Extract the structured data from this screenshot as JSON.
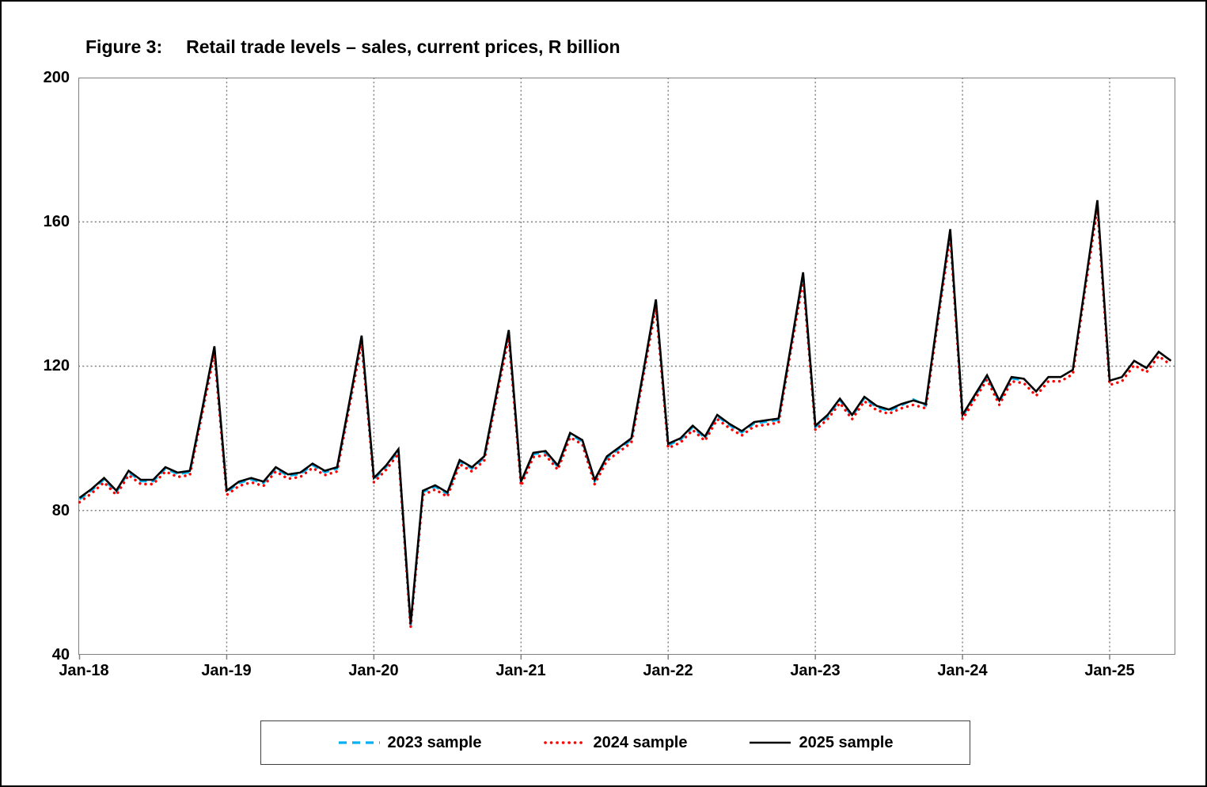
{
  "figure": {
    "title_prefix": "Figure 3:",
    "title_text": "Retail trade levels – sales, current prices, R billion"
  },
  "y_axis": {
    "ticks": [
      "200",
      "160",
      "120",
      "80",
      "40"
    ]
  },
  "x_axis": {
    "labels": [
      "Jan-18",
      "Jan-19",
      "Jan-20",
      "Jan-21",
      "Jan-22",
      "Jan-23",
      "Jan-24",
      "Jan-25"
    ]
  },
  "legend": {
    "items": [
      {
        "label": "2023 sample",
        "color": "#00B0F0",
        "style": "dashed"
      },
      {
        "label": "2024 sample",
        "color": "#FF0000",
        "style": "dotted"
      },
      {
        "label": "2025 sample",
        "color": "#000000",
        "style": "solid"
      }
    ]
  },
  "chart_data": {
    "type": "line",
    "title": "Figure 3: Retail trade levels – sales, current prices, R billion",
    "xlabel": "",
    "ylabel": "R billion",
    "ylim": [
      40,
      200
    ],
    "yticks": [
      40,
      80,
      120,
      160,
      200
    ],
    "grid_y": [
      80,
      120,
      160
    ],
    "grid_style": "dotted",
    "legend_position": "bottom",
    "x": [
      "Jan-18",
      "Feb-18",
      "Mar-18",
      "Apr-18",
      "May-18",
      "Jun-18",
      "Jul-18",
      "Aug-18",
      "Sep-18",
      "Oct-18",
      "Nov-18",
      "Dec-18",
      "Jan-19",
      "Feb-19",
      "Mar-19",
      "Apr-19",
      "May-19",
      "Jun-19",
      "Jul-19",
      "Aug-19",
      "Sep-19",
      "Oct-19",
      "Nov-19",
      "Dec-19",
      "Jan-20",
      "Feb-20",
      "Mar-20",
      "Apr-20",
      "May-20",
      "Jun-20",
      "Jul-20",
      "Aug-20",
      "Sep-20",
      "Oct-20",
      "Nov-20",
      "Dec-20",
      "Jan-21",
      "Feb-21",
      "Mar-21",
      "Apr-21",
      "May-21",
      "Jun-21",
      "Jul-21",
      "Aug-21",
      "Sep-21",
      "Oct-21",
      "Nov-21",
      "Dec-21",
      "Jan-22",
      "Feb-22",
      "Mar-22",
      "Apr-22",
      "May-22",
      "Jun-22",
      "Jul-22",
      "Aug-22",
      "Sep-22",
      "Oct-22",
      "Nov-22",
      "Dec-22",
      "Jan-23",
      "Feb-23",
      "Mar-23",
      "Apr-23",
      "May-23",
      "Jun-23",
      "Jul-23",
      "Aug-23",
      "Sep-23",
      "Oct-23",
      "Nov-23",
      "Dec-23",
      "Jan-24",
      "Feb-24",
      "Mar-24",
      "Apr-24",
      "May-24",
      "Jun-24",
      "Jul-24",
      "Aug-24",
      "Sep-24",
      "Oct-24",
      "Nov-24",
      "Dec-24",
      "Jan-25",
      "Feb-25",
      "Mar-25",
      "Apr-25",
      "May-25",
      "Jun-25"
    ],
    "series": [
      {
        "name": "2023 sample",
        "color": "#00B0F0",
        "style": "dashed",
        "values": [
          83.1,
          85.6,
          88.6,
          85.1,
          90.6,
          88.1,
          88.1,
          91.6,
          90.1,
          90.6,
          107.6,
          125.1,
          85.1,
          87.6,
          88.6,
          87.6,
          91.6,
          89.6,
          90.1,
          92.6,
          90.6,
          91.6,
          109.6,
          128.1,
          88.6,
          92.1,
          96.6,
          48.1,
          85.1,
          86.6,
          84.6,
          93.6,
          91.6,
          94.6,
          112.1,
          129.6,
          87.6,
          95.6,
          96.1,
          92.1,
          101.1,
          99.1,
          88.1,
          94.6,
          97.1,
          99.6,
          118.6,
          138.1,
          98.1,
          99.6,
          103.1,
          100.1,
          106.1,
          103.6,
          101.6,
          104.1,
          104.6,
          105.1,
          125.1,
          145.6,
          103.1,
          106.1,
          110.6,
          106.1,
          111.1,
          108.6,
          107.6,
          109.1,
          110.8,
          109.1,
          133.6,
          157.6,
          106.1,
          111.6,
          117.1,
          110.1,
          116.6,
          116.1
        ]
      },
      {
        "name": "2024 sample",
        "color": "#FF0000",
        "style": "dotted",
        "values": [
          82.3,
          84.8,
          87.8,
          84.3,
          89.8,
          87.3,
          87.3,
          90.8,
          89.3,
          89.8,
          106.8,
          123.5,
          84.3,
          86.8,
          87.8,
          86.8,
          90.8,
          88.8,
          89.3,
          91.8,
          89.8,
          90.8,
          108.8,
          126.5,
          87.8,
          91.3,
          95.8,
          47.5,
          84.3,
          85.8,
          83.8,
          92.8,
          90.8,
          93.8,
          111.3,
          128.0,
          86.8,
          94.8,
          95.3,
          91.3,
          100.3,
          98.3,
          87.3,
          93.8,
          96.3,
          98.8,
          117.8,
          136.5,
          97.3,
          98.8,
          102.3,
          99.3,
          105.3,
          102.8,
          100.8,
          103.3,
          103.8,
          104.3,
          124.3,
          144.0,
          102.3,
          105.3,
          109.8,
          105.3,
          110.3,
          107.8,
          106.8,
          108.3,
          109.3,
          108.3,
          132.8,
          156.0,
          105.3,
          110.8,
          116.3,
          109.3,
          115.8,
          115.3,
          111.8,
          115.8,
          115.8,
          117.8,
          141.3,
          164.0,
          114.8,
          115.8,
          120.3,
          118.3,
          122.8,
          120.3
        ]
      },
      {
        "name": "2025 sample",
        "color": "#000000",
        "style": "solid",
        "values": [
          83.5,
          86,
          89,
          85.5,
          91,
          88.5,
          88.5,
          92,
          90.5,
          91,
          108,
          125.5,
          85.5,
          88,
          89,
          88,
          92,
          90,
          90.5,
          93,
          91,
          92,
          110,
          128.5,
          89,
          92.5,
          97,
          48.5,
          85.5,
          87,
          85,
          94,
          92,
          95,
          112.5,
          130,
          88,
          96,
          96.5,
          92.5,
          101.5,
          99.5,
          88.5,
          95,
          97.5,
          100,
          119,
          138.5,
          98.5,
          100,
          103.5,
          100.5,
          106.5,
          104,
          102,
          104.5,
          105,
          105.5,
          125.5,
          146,
          103.5,
          106.5,
          111,
          106.5,
          111.5,
          109,
          108,
          109.5,
          110.5,
          109.5,
          134,
          158,
          106.5,
          112,
          117.5,
          110.5,
          117,
          116.5,
          113,
          117,
          117,
          119,
          142.5,
          166,
          116,
          117,
          121.5,
          119.5,
          124,
          121.5
        ]
      }
    ]
  }
}
